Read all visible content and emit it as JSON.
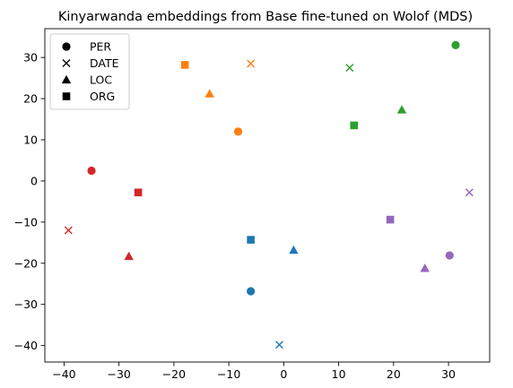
{
  "chart_data": {
    "type": "scatter",
    "title": "Kinyarwanda embeddings from Base fine-tuned on Wolof (MDS)",
    "xlabel": "",
    "ylabel": "",
    "xlim": [
      -43.5,
      37.5
    ],
    "ylim": [
      -44,
      37
    ],
    "xticks": [
      -40,
      -30,
      -20,
      -10,
      0,
      10,
      20,
      30
    ],
    "yticks": [
      -40,
      -30,
      -20,
      -10,
      0,
      10,
      20,
      30
    ],
    "grid": false,
    "legend": {
      "placement": "top-left",
      "entries": [
        {
          "label": "PER",
          "marker": "circle"
        },
        {
          "label": "DATE",
          "marker": "x"
        },
        {
          "label": "LOC",
          "marker": "triangle"
        },
        {
          "label": "ORG",
          "marker": "square"
        }
      ]
    },
    "series": [
      {
        "color": "#d62728",
        "points": [
          {
            "x": -35,
            "y": 2.5,
            "marker": "circle"
          },
          {
            "x": -39.2,
            "y": -12,
            "marker": "x"
          },
          {
            "x": -28.2,
            "y": -18.3,
            "marker": "triangle"
          },
          {
            "x": -26.5,
            "y": -2.8,
            "marker": "square"
          }
        ]
      },
      {
        "color": "#ff7f0e",
        "points": [
          {
            "x": -8.3,
            "y": 12,
            "marker": "circle"
          },
          {
            "x": -6,
            "y": 28.5,
            "marker": "x"
          },
          {
            "x": -13.5,
            "y": 21.2,
            "marker": "triangle"
          },
          {
            "x": -18,
            "y": 28.2,
            "marker": "square"
          }
        ]
      },
      {
        "color": "#2ca02c",
        "points": [
          {
            "x": 31.3,
            "y": 33,
            "marker": "circle"
          },
          {
            "x": 12,
            "y": 27.5,
            "marker": "x"
          },
          {
            "x": 21.5,
            "y": 17.3,
            "marker": "triangle"
          },
          {
            "x": 12.8,
            "y": 13.5,
            "marker": "square"
          }
        ]
      },
      {
        "color": "#1f77b4",
        "points": [
          {
            "x": -6,
            "y": -26.8,
            "marker": "circle"
          },
          {
            "x": -0.8,
            "y": -39.8,
            "marker": "x"
          },
          {
            "x": 1.8,
            "y": -16.8,
            "marker": "triangle"
          },
          {
            "x": -6,
            "y": -14.3,
            "marker": "square"
          }
        ]
      },
      {
        "color": "#9467bd",
        "points": [
          {
            "x": 30.2,
            "y": -18.1,
            "marker": "circle"
          },
          {
            "x": 33.8,
            "y": -2.8,
            "marker": "x"
          },
          {
            "x": 25.7,
            "y": -21.2,
            "marker": "triangle"
          },
          {
            "x": 19.4,
            "y": -9.4,
            "marker": "square"
          }
        ]
      }
    ]
  }
}
